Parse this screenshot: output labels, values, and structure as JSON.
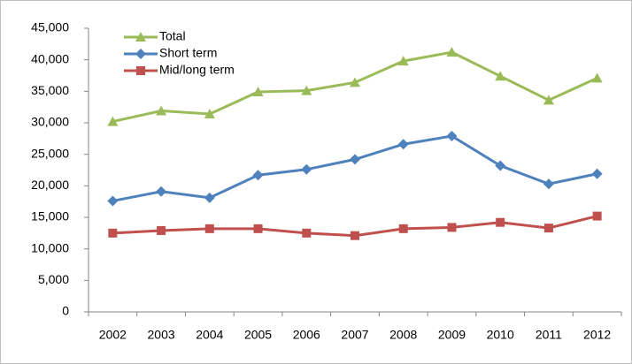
{
  "chart_data": {
    "type": "line",
    "categories": [
      "2002",
      "2003",
      "2004",
      "2005",
      "2006",
      "2007",
      "2008",
      "2009",
      "2010",
      "2011",
      "2012"
    ],
    "series": [
      {
        "name": "Total",
        "color": "#9bbb59",
        "marker": "triangle",
        "values": [
          30200,
          31900,
          31400,
          34900,
          35100,
          36400,
          39800,
          41200,
          37400,
          33600,
          37100
        ]
      },
      {
        "name": "Short term",
        "color": "#4f81bd",
        "marker": "diamond",
        "values": [
          17600,
          19100,
          18100,
          21700,
          22600,
          24200,
          26600,
          27900,
          23200,
          20300,
          21900
        ]
      },
      {
        "name": "Mid/long term",
        "color": "#c0504d",
        "marker": "square",
        "values": [
          12500,
          12900,
          13200,
          13200,
          12500,
          12100,
          13200,
          13400,
          14200,
          13300,
          15200
        ]
      }
    ],
    "ylim": [
      0,
      45000
    ],
    "yticks": [
      0,
      {
        "value": 5000,
        "label": "5,000"
      },
      {
        "value": 10000,
        "label": "10,000"
      },
      {
        "value": 15000,
        "label": "15,000"
      },
      {
        "value": 20000,
        "label": "20,000"
      },
      {
        "value": 25000,
        "label": "25,000"
      },
      {
        "value": 30000,
        "label": "30,000"
      },
      {
        "value": 35000,
        "label": "35,000"
      },
      {
        "value": 40000,
        "label": "40,000"
      },
      {
        "value": 45000,
        "label": "45,000"
      }
    ],
    "grid": false,
    "legend": "top-left"
  }
}
